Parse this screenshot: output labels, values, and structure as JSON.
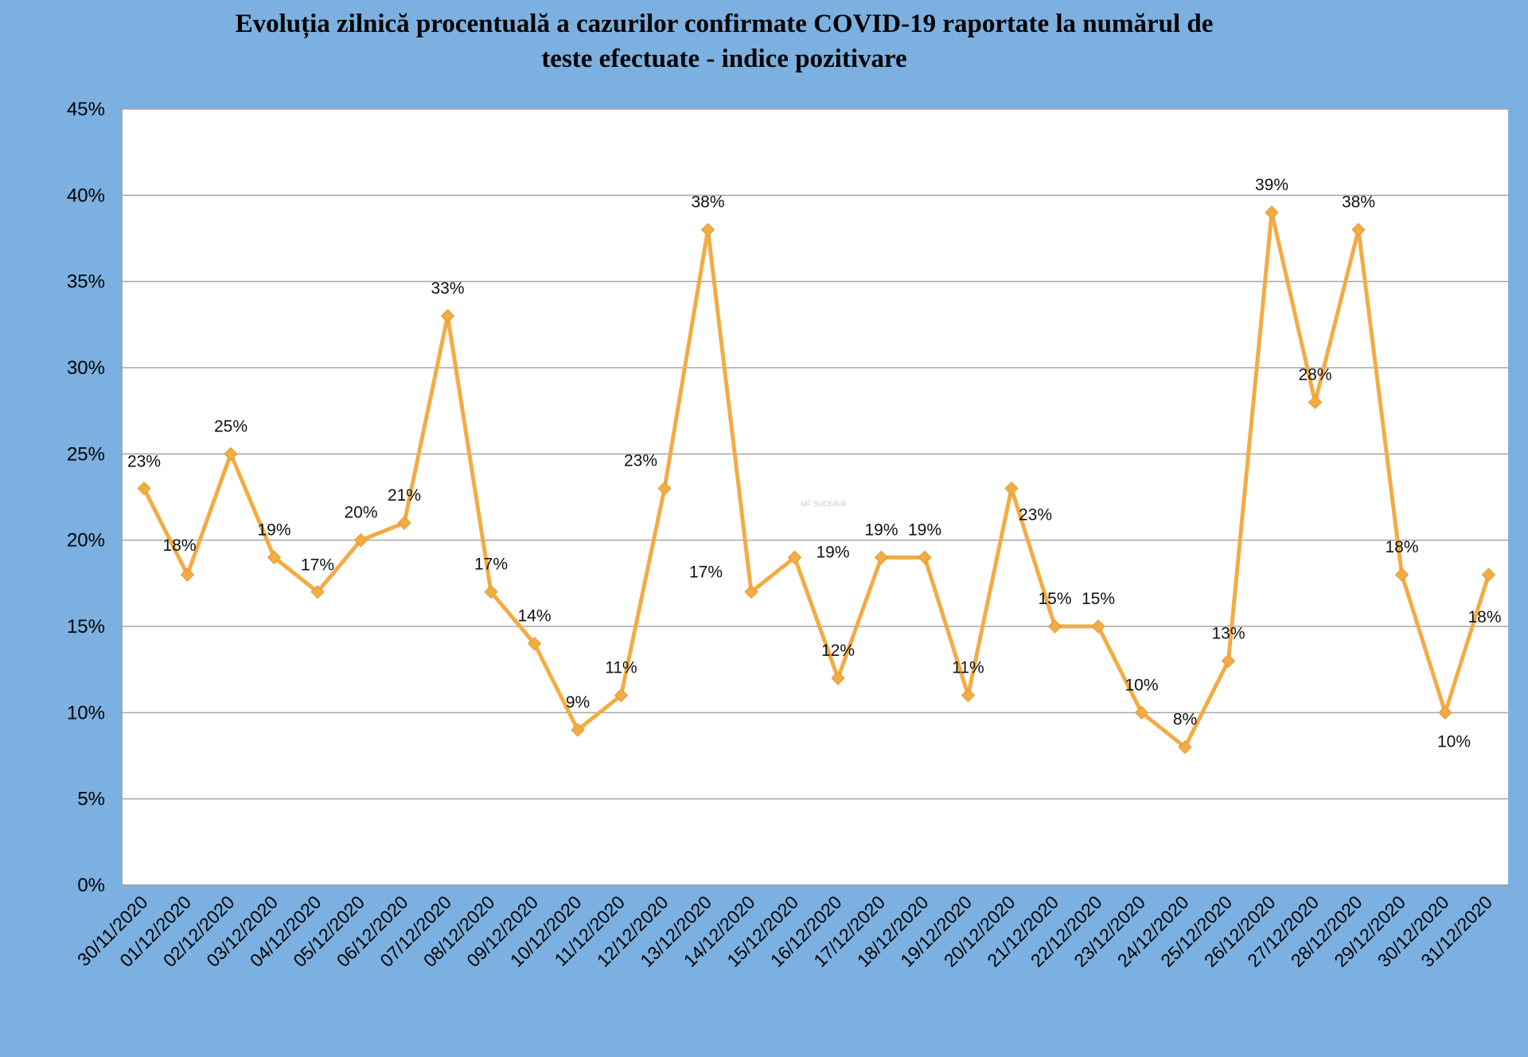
{
  "chart_data": {
    "type": "line",
    "title_lines": [
      "Evoluția zilnică procentuală a cazurilor confirmate COVID-19 raportate la numărul de",
      "teste efectuate - indice pozitivare"
    ],
    "xlabel": "",
    "ylabel": "",
    "ylim": [
      0,
      45
    ],
    "y_ticks": [
      "0%",
      "5%",
      "10%",
      "15%",
      "20%",
      "25%",
      "30%",
      "35%",
      "40%",
      "45%"
    ],
    "categories": [
      "30/11/2020",
      "01/12/2020",
      "02/12/2020",
      "03/12/2020",
      "04/12/2020",
      "05/12/2020",
      "06/12/2020",
      "07/12/2020",
      "08/12/2020",
      "09/12/2020",
      "10/12/2020",
      "11/12/2020",
      "12/12/2020",
      "13/12/2020",
      "14/12/2020",
      "15/12/2020",
      "16/12/2020",
      "17/12/2020",
      "18/12/2020",
      "19/12/2020",
      "20/12/2020",
      "21/12/2020",
      "22/12/2020",
      "23/12/2020",
      "24/12/2020",
      "25/12/2020",
      "26/12/2020",
      "27/12/2020",
      "28/12/2020",
      "29/12/2020",
      "30/12/2020",
      "31/12/2020"
    ],
    "series": [
      {
        "values": [
          23,
          18,
          25,
          19,
          17,
          20,
          21,
          33,
          17,
          14,
          9,
          11,
          23,
          38,
          17,
          19,
          12,
          19,
          19,
          11,
          23,
          15,
          15,
          10,
          8,
          13,
          39,
          28,
          38,
          18,
          10,
          18
        ],
        "color": "#f2ac44"
      }
    ],
    "data_labels": [
      "23%",
      "18%",
      "25%",
      "19%",
      "17%",
      "20%",
      "21%",
      "33%",
      "17%",
      "14%",
      "9%",
      "11%",
      "23%",
      "38%",
      "17%",
      "19%",
      "12%",
      "19%",
      "19%",
      "11%",
      "23%",
      "15%",
      "15%",
      "10%",
      "8%",
      "13%",
      "39%",
      "28%",
      "38%",
      "18%",
      "10%",
      "18%"
    ],
    "grid": true,
    "legend": "none",
    "watermark": "MF SUCEAVA",
    "colors": {
      "background": "#7bb0e0",
      "plot_area": "#ffffff",
      "gridline": "#a6a6a6",
      "line": "#f2ac44"
    }
  }
}
